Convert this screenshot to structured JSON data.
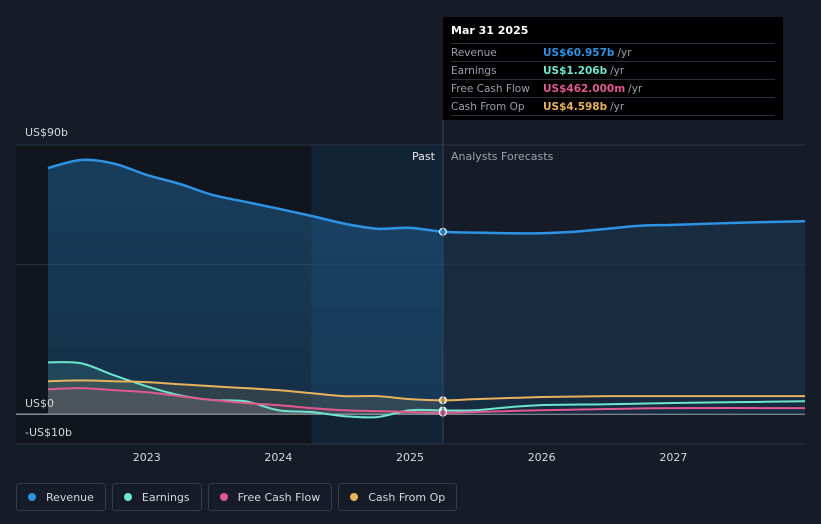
{
  "tooltip": {
    "date": "Mar 31 2025",
    "rows": [
      {
        "label": "Revenue",
        "value": "US$60.957b",
        "unit": "/yr",
        "color": "#2e93e3"
      },
      {
        "label": "Earnings",
        "value": "US$1.206b",
        "unit": "/yr",
        "color": "#6ee6cf"
      },
      {
        "label": "Free Cash Flow",
        "value": "US$462.000m",
        "unit": "/yr",
        "color": "#e0598f"
      },
      {
        "label": "Cash From Op",
        "value": "US$4.598b",
        "unit": "/yr",
        "color": "#e8b35e"
      }
    ]
  },
  "legend": [
    {
      "label": "Revenue",
      "color": "#2e93e3"
    },
    {
      "label": "Earnings",
      "color": "#6ee6cf"
    },
    {
      "label": "Free Cash Flow",
      "color": "#e0598f"
    },
    {
      "label": "Cash From Op",
      "color": "#e8b35e"
    }
  ],
  "chart_data": {
    "type": "line",
    "ylim": [
      -10,
      90
    ],
    "xlim": [
      2022.25,
      2028.0
    ],
    "y_tick_labels": [
      {
        "value": 90,
        "label": "US$90b"
      },
      {
        "value": 0,
        "label": "US$0"
      },
      {
        "value": -10,
        "label": "-US$10b"
      }
    ],
    "x_tick_labels": [
      {
        "value": 2023,
        "label": "2023"
      },
      {
        "value": 2024,
        "label": "2024"
      },
      {
        "value": 2025,
        "label": "2025"
      },
      {
        "value": 2026,
        "label": "2026"
      },
      {
        "value": 2027,
        "label": "2027"
      }
    ],
    "grid_values": [
      90,
      50,
      0
    ],
    "divider_x": 2025.25,
    "highlight_start_x": 2024.25,
    "past_label": "Past",
    "forecast_label": "Analysts Forecasts",
    "series": [
      {
        "name": "Revenue",
        "color": "#2e93e3",
        "points": [
          [
            2022.25,
            82.3
          ],
          [
            2022.5,
            85.0
          ],
          [
            2022.75,
            83.8
          ],
          [
            2023.0,
            80.0
          ],
          [
            2023.25,
            77.0
          ],
          [
            2023.5,
            73.3
          ],
          [
            2023.75,
            71.0
          ],
          [
            2024.0,
            68.7
          ],
          [
            2024.25,
            66.3
          ],
          [
            2024.5,
            63.7
          ],
          [
            2024.75,
            62.0
          ],
          [
            2025.0,
            62.3
          ],
          [
            2025.25,
            61.0
          ],
          [
            2025.5,
            60.7
          ],
          [
            2025.75,
            60.5
          ],
          [
            2026.0,
            60.5
          ],
          [
            2026.25,
            61.0
          ],
          [
            2026.5,
            62.0
          ],
          [
            2026.75,
            63.0
          ],
          [
            2027.0,
            63.3
          ],
          [
            2027.5,
            64.0
          ],
          [
            2028.0,
            64.5
          ]
        ]
      },
      {
        "name": "Earnings",
        "color": "#6ee6cf",
        "points": [
          [
            2022.25,
            17.3
          ],
          [
            2022.5,
            17.0
          ],
          [
            2022.75,
            13.0
          ],
          [
            2023.0,
            9.3
          ],
          [
            2023.25,
            6.3
          ],
          [
            2023.5,
            4.7
          ],
          [
            2023.75,
            4.3
          ],
          [
            2024.0,
            1.3
          ],
          [
            2024.25,
            0.7
          ],
          [
            2024.5,
            -0.7
          ],
          [
            2024.75,
            -1.0
          ],
          [
            2025.0,
            1.3
          ],
          [
            2025.25,
            1.2
          ],
          [
            2025.5,
            1.3
          ],
          [
            2025.75,
            2.3
          ],
          [
            2026.0,
            3.0
          ],
          [
            2026.5,
            3.3
          ],
          [
            2027.0,
            3.7
          ],
          [
            2027.5,
            4.0
          ],
          [
            2028.0,
            4.3
          ]
        ]
      },
      {
        "name": "Free Cash Flow",
        "color": "#e0598f",
        "points": [
          [
            2022.25,
            8.3
          ],
          [
            2022.5,
            8.7
          ],
          [
            2022.75,
            8.0
          ],
          [
            2023.0,
            7.3
          ],
          [
            2023.25,
            6.0
          ],
          [
            2023.5,
            4.7
          ],
          [
            2023.75,
            3.7
          ],
          [
            2024.0,
            3.0
          ],
          [
            2024.25,
            2.0
          ],
          [
            2024.5,
            1.3
          ],
          [
            2024.75,
            1.0
          ],
          [
            2025.0,
            0.7
          ],
          [
            2025.25,
            0.46
          ],
          [
            2025.5,
            0.7
          ],
          [
            2026.0,
            1.3
          ],
          [
            2026.5,
            1.7
          ],
          [
            2027.0,
            2.0
          ],
          [
            2028.0,
            2.0
          ]
        ]
      },
      {
        "name": "Cash From Op",
        "color": "#e8b35e",
        "points": [
          [
            2022.25,
            11.0
          ],
          [
            2022.5,
            11.3
          ],
          [
            2022.75,
            11.0
          ],
          [
            2023.0,
            10.7
          ],
          [
            2023.25,
            10.0
          ],
          [
            2023.5,
            9.3
          ],
          [
            2023.75,
            8.7
          ],
          [
            2024.0,
            8.0
          ],
          [
            2024.25,
            7.0
          ],
          [
            2024.5,
            6.0
          ],
          [
            2024.75,
            6.0
          ],
          [
            2025.0,
            5.0
          ],
          [
            2025.25,
            4.6
          ],
          [
            2025.5,
            5.0
          ],
          [
            2026.0,
            5.7
          ],
          [
            2026.5,
            6.0
          ],
          [
            2027.0,
            6.0
          ],
          [
            2028.0,
            6.0
          ]
        ]
      }
    ]
  }
}
